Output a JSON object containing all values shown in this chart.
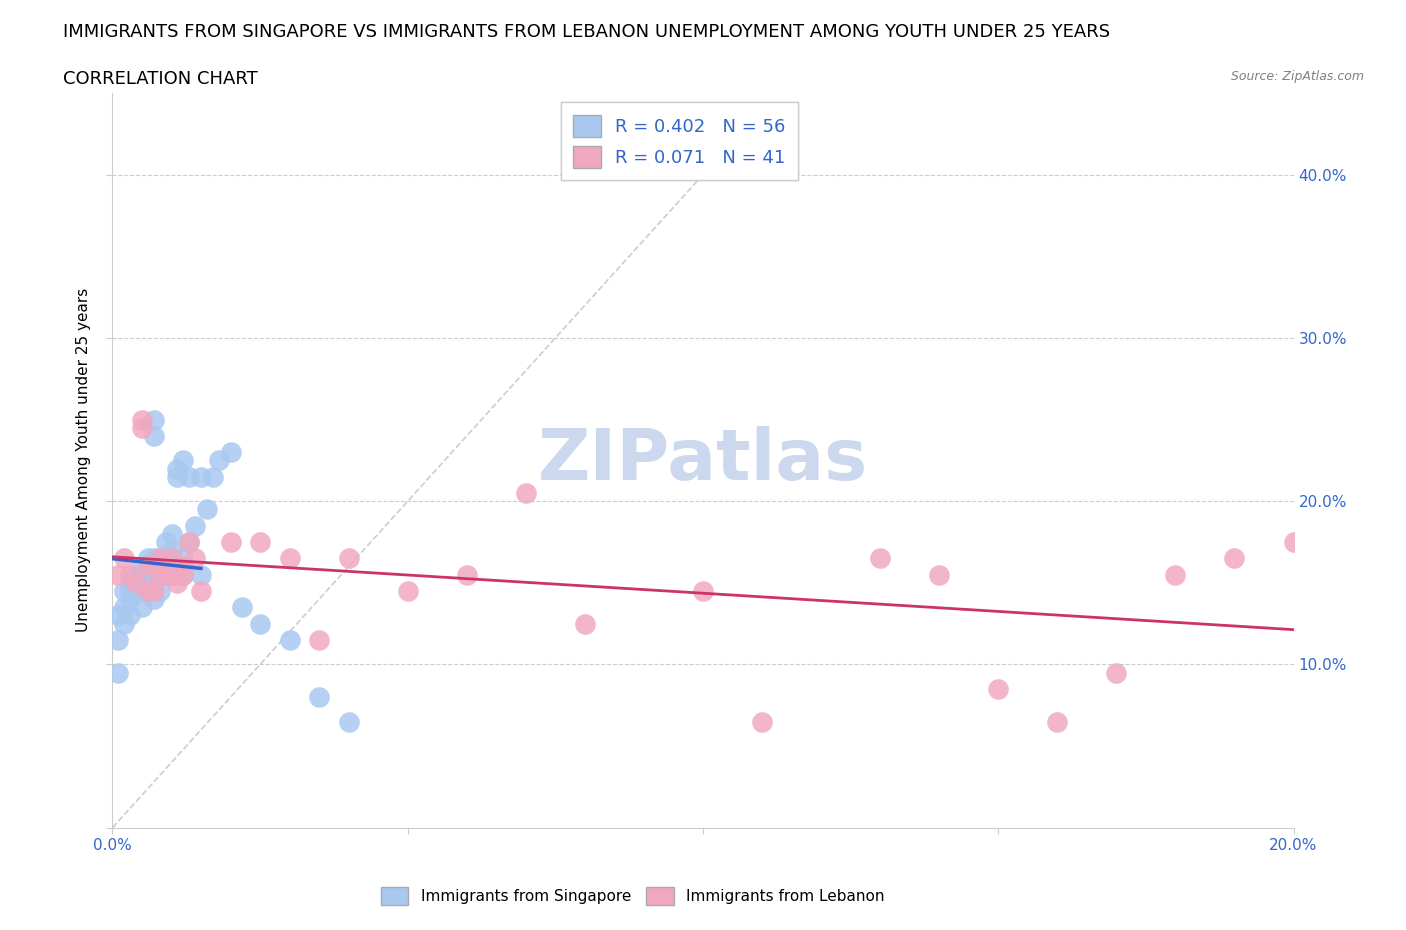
{
  "title_line1": "IMMIGRANTS FROM SINGAPORE VS IMMIGRANTS FROM LEBANON UNEMPLOYMENT AMONG YOUTH UNDER 25 YEARS",
  "title_line2": "CORRELATION CHART",
  "source": "Source: ZipAtlas.com",
  "ylabel": "Unemployment Among Youth under 25 years",
  "xlim": [
    0.0,
    0.2
  ],
  "ylim": [
    0.0,
    0.45
  ],
  "singapore_color": "#a8c8f0",
  "lebanon_color": "#f0a8c0",
  "singapore_line_color": "#3366cc",
  "lebanon_line_color": "#cc3366",
  "legend_text_color": "#3366cc",
  "R_singapore": 0.402,
  "N_singapore": 56,
  "R_lebanon": 0.071,
  "N_lebanon": 41,
  "singapore_x": [
    0.001,
    0.001,
    0.001,
    0.002,
    0.002,
    0.002,
    0.003,
    0.003,
    0.003,
    0.003,
    0.004,
    0.004,
    0.004,
    0.005,
    0.005,
    0.005,
    0.005,
    0.005,
    0.006,
    0.006,
    0.006,
    0.006,
    0.007,
    0.007,
    0.007,
    0.007,
    0.007,
    0.008,
    0.008,
    0.008,
    0.008,
    0.009,
    0.009,
    0.009,
    0.01,
    0.01,
    0.01,
    0.011,
    0.011,
    0.012,
    0.012,
    0.012,
    0.013,
    0.013,
    0.014,
    0.015,
    0.015,
    0.016,
    0.017,
    0.018,
    0.02,
    0.022,
    0.025,
    0.03,
    0.035,
    0.04
  ],
  "singapore_y": [
    0.13,
    0.115,
    0.095,
    0.145,
    0.135,
    0.125,
    0.15,
    0.145,
    0.14,
    0.13,
    0.155,
    0.15,
    0.145,
    0.16,
    0.155,
    0.15,
    0.145,
    0.135,
    0.165,
    0.155,
    0.15,
    0.145,
    0.25,
    0.24,
    0.165,
    0.155,
    0.14,
    0.165,
    0.16,
    0.155,
    0.145,
    0.175,
    0.165,
    0.155,
    0.18,
    0.17,
    0.155,
    0.22,
    0.215,
    0.225,
    0.165,
    0.155,
    0.215,
    0.175,
    0.185,
    0.215,
    0.155,
    0.195,
    0.215,
    0.225,
    0.23,
    0.135,
    0.125,
    0.115,
    0.08,
    0.065
  ],
  "lebanon_x": [
    0.001,
    0.002,
    0.003,
    0.004,
    0.005,
    0.005,
    0.006,
    0.006,
    0.007,
    0.007,
    0.008,
    0.008,
    0.009,
    0.01,
    0.01,
    0.011,
    0.011,
    0.012,
    0.012,
    0.013,
    0.014,
    0.015,
    0.02,
    0.025,
    0.03,
    0.035,
    0.04,
    0.05,
    0.06,
    0.07,
    0.08,
    0.1,
    0.11,
    0.13,
    0.14,
    0.15,
    0.16,
    0.17,
    0.18,
    0.19,
    0.2
  ],
  "lebanon_y": [
    0.155,
    0.165,
    0.155,
    0.15,
    0.25,
    0.245,
    0.16,
    0.145,
    0.16,
    0.145,
    0.165,
    0.155,
    0.155,
    0.165,
    0.155,
    0.16,
    0.15,
    0.16,
    0.155,
    0.175,
    0.165,
    0.145,
    0.175,
    0.175,
    0.165,
    0.115,
    0.165,
    0.145,
    0.155,
    0.205,
    0.125,
    0.145,
    0.065,
    0.165,
    0.155,
    0.085,
    0.065,
    0.095,
    0.155,
    0.165,
    0.175
  ],
  "background_color": "#ffffff",
  "grid_color": "#cccccc",
  "title_fontsize": 13,
  "subtitle_fontsize": 13,
  "axis_label_fontsize": 11,
  "tick_fontsize": 11,
  "legend_fontsize": 13,
  "watermark_color": "#ccd8ee",
  "watermark_fontsize": 52,
  "diag_line_color": "#b0b8cc"
}
